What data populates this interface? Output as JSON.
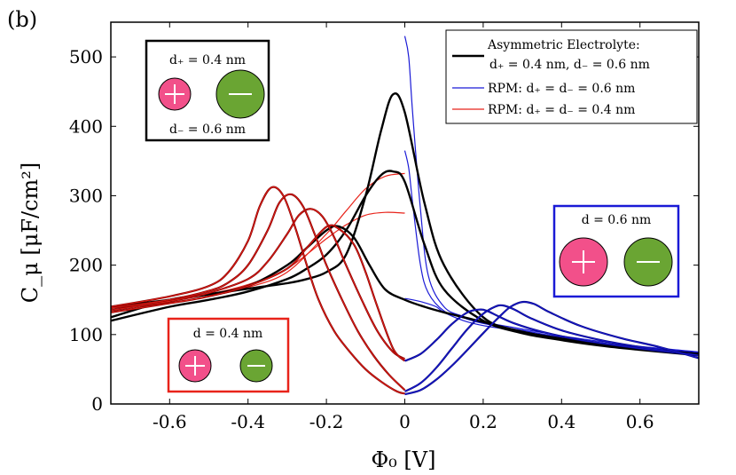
{
  "panel_label": "(b)",
  "colors": {
    "asymmetric": "#000000",
    "rpm_06": "#1a1ad6",
    "rpm_04": "#e8231a",
    "series_dark_red": "#8b0000",
    "series_dark_blue": "#0a0a8c",
    "cation": "#f2508a",
    "anion": "#6aa533",
    "box_black": "#000000",
    "box_blue": "#1a1ad6",
    "box_red": "#e8231a"
  },
  "insets": {
    "black_box": {
      "d_plus": "d₊ = 0.4 nm",
      "d_minus": "d₋ = 0.6 nm"
    },
    "blue_box": {
      "d": "d = 0.6 nm"
    },
    "red_box": {
      "d": "d = 0.4 nm"
    }
  },
  "chart_data": {
    "type": "line",
    "xlabel": "Φ₀ [V]",
    "ylabel": "C_μ [μF/cm²]",
    "xlim": [
      -0.75,
      0.75
    ],
    "ylim": [
      0,
      550
    ],
    "xticks": [
      -0.6,
      -0.4,
      -0.2,
      0,
      0.2,
      0.4,
      0.6
    ],
    "xtick_labels": [
      "-0.6",
      "-0.4",
      "-0.2",
      "0",
      "0.2",
      "0.4",
      "0.6"
    ],
    "yticks": [
      0,
      100,
      200,
      300,
      400,
      500
    ],
    "ytick_labels": [
      "0",
      "100",
      "200",
      "300",
      "400",
      "500"
    ],
    "grid": false,
    "legend_position": "top-right",
    "legend": [
      {
        "label_line1": "Asymmetric Electrolyte:",
        "label_line2": "d₊ = 0.4 nm, d₋ = 0.6 nm",
        "color": "#000000"
      },
      {
        "label_line1": "RPM: d₊ = d₋ = 0.6 nm",
        "label_line2": "",
        "color": "#1a1ad6"
      },
      {
        "label_line1": "RPM: d₊ = d₋ = 0.4 nm",
        "label_line2": "",
        "color": "#e8231a"
      }
    ],
    "series": [
      {
        "group": "asymmetric",
        "x": [
          -0.75,
          -0.6,
          -0.5,
          -0.4,
          -0.3,
          -0.25,
          -0.2,
          -0.15,
          -0.1,
          -0.06,
          -0.03,
          0,
          0.05,
          0.1,
          0.2,
          0.3,
          0.4,
          0.5,
          0.6,
          0.75
        ],
        "y": [
          125,
          150,
          158,
          166,
          174,
          180,
          190,
          215,
          300,
          395,
          446,
          420,
          290,
          200,
          125,
          104,
          94,
          86,
          80,
          72
        ]
      },
      {
        "group": "asymmetric",
        "x": [
          -0.75,
          -0.6,
          -0.5,
          -0.4,
          -0.3,
          -0.25,
          -0.2,
          -0.15,
          -0.1,
          -0.06,
          -0.03,
          0,
          0.05,
          0.1,
          0.2,
          0.3,
          0.4,
          0.5,
          0.6,
          0.75
        ],
        "y": [
          120,
          140,
          150,
          162,
          180,
          195,
          215,
          250,
          300,
          330,
          335,
          320,
          230,
          165,
          120,
          102,
          92,
          84,
          78,
          70
        ]
      },
      {
        "group": "asymmetric",
        "x": [
          -0.75,
          -0.6,
          -0.5,
          -0.4,
          -0.3,
          -0.25,
          -0.2,
          -0.17,
          -0.13,
          -0.09,
          -0.05,
          0,
          0.05,
          0.1,
          0.2,
          0.3,
          0.4,
          0.5,
          0.6,
          0.75
        ],
        "y": [
          140,
          150,
          158,
          170,
          200,
          225,
          250,
          256,
          240,
          200,
          165,
          150,
          140,
          132,
          118,
          104,
          94,
          86,
          80,
          72
        ]
      },
      {
        "group": "rpm04",
        "x": [
          -0.75,
          -0.6,
          -0.5,
          -0.45,
          -0.4,
          -0.37,
          -0.34,
          -0.31,
          -0.28,
          -0.25,
          -0.22,
          -0.18,
          -0.14,
          -0.1,
          -0.06,
          -0.02,
          0
        ],
        "y": [
          140,
          155,
          170,
          190,
          235,
          285,
          312,
          300,
          255,
          200,
          150,
          105,
          75,
          50,
          32,
          18,
          15
        ]
      },
      {
        "group": "rpm04",
        "x": [
          -0.75,
          -0.6,
          -0.5,
          -0.45,
          -0.4,
          -0.35,
          -0.32,
          -0.29,
          -0.26,
          -0.23,
          -0.2,
          -0.16,
          -0.12,
          -0.08,
          -0.04,
          0
        ],
        "y": [
          138,
          150,
          163,
          175,
          200,
          250,
          290,
          302,
          285,
          245,
          200,
          150,
          105,
          70,
          42,
          20
        ]
      },
      {
        "group": "rpm04",
        "x": [
          -0.75,
          -0.6,
          -0.5,
          -0.4,
          -0.35,
          -0.3,
          -0.27,
          -0.24,
          -0.21,
          -0.18,
          -0.15,
          -0.11,
          -0.07,
          -0.03,
          0
        ],
        "y": [
          135,
          148,
          160,
          180,
          205,
          245,
          272,
          281,
          270,
          240,
          200,
          150,
          105,
          75,
          65
        ]
      },
      {
        "group": "rpm04",
        "x": [
          -0.75,
          -0.6,
          -0.5,
          -0.4,
          -0.3,
          -0.25,
          -0.2,
          -0.17,
          -0.13,
          -0.1,
          -0.07,
          -0.03,
          0
        ],
        "y": [
          132,
          145,
          155,
          170,
          195,
          225,
          255,
          253,
          230,
          190,
          140,
          80,
          62
        ]
      },
      {
        "group": "rpm04_thin",
        "x": [
          -0.75,
          -0.6,
          -0.5,
          -0.4,
          -0.3,
          -0.2,
          -0.15,
          -0.1,
          -0.05,
          0
        ],
        "y": [
          140,
          148,
          158,
          172,
          195,
          238,
          258,
          272,
          276,
          275
        ]
      },
      {
        "group": "rpm04_thin",
        "x": [
          -0.75,
          -0.6,
          -0.5,
          -0.4,
          -0.3,
          -0.2,
          -0.15,
          -0.1,
          -0.05,
          0
        ],
        "y": [
          138,
          146,
          155,
          168,
          190,
          245,
          278,
          310,
          328,
          332
        ]
      },
      {
        "group": "rpm06_thin",
        "x": [
          0,
          0.01,
          0.02,
          0.04,
          0.06,
          0.1,
          0.15,
          0.2,
          0.3,
          0.4,
          0.5,
          0.6,
          0.75
        ],
        "y": [
          530,
          500,
          420,
          280,
          185,
          140,
          126,
          118,
          108,
          98,
          90,
          83,
          75
        ]
      },
      {
        "group": "rpm06_thin",
        "x": [
          0,
          0.01,
          0.02,
          0.04,
          0.06,
          0.1,
          0.15,
          0.2,
          0.3,
          0.4,
          0.5,
          0.6,
          0.75
        ],
        "y": [
          365,
          340,
          290,
          200,
          160,
          134,
          124,
          116,
          106,
          96,
          88,
          82,
          74
        ]
      },
      {
        "group": "rpm06_thin",
        "x": [
          0,
          0.02,
          0.05,
          0.08,
          0.1,
          0.15,
          0.2,
          0.3,
          0.4,
          0.5,
          0.6,
          0.75
        ],
        "y": [
          152,
          150,
          146,
          140,
          132,
          120,
          113,
          104,
          95,
          88,
          82,
          74
        ]
      },
      {
        "group": "rpm06",
        "x": [
          0,
          0.04,
          0.08,
          0.12,
          0.16,
          0.19,
          0.21,
          0.24,
          0.28,
          0.35,
          0.45,
          0.6,
          0.75
        ],
        "y": [
          62,
          72,
          92,
          115,
          132,
          136,
          134,
          126,
          116,
          104,
          92,
          80,
          70
        ]
      },
      {
        "group": "rpm06",
        "x": [
          0,
          0.04,
          0.08,
          0.12,
          0.16,
          0.2,
          0.23,
          0.25,
          0.28,
          0.32,
          0.4,
          0.5,
          0.6,
          0.75
        ],
        "y": [
          18,
          30,
          52,
          80,
          108,
          130,
          140,
          142,
          136,
          124,
          106,
          92,
          82,
          70
        ]
      },
      {
        "group": "rpm06",
        "x": [
          0,
          0.04,
          0.08,
          0.12,
          0.16,
          0.2,
          0.24,
          0.27,
          0.3,
          0.33,
          0.37,
          0.45,
          0.55,
          0.65,
          0.75
        ],
        "y": [
          14,
          20,
          35,
          55,
          78,
          102,
          125,
          140,
          147,
          144,
          132,
          112,
          95,
          82,
          66
        ]
      }
    ]
  }
}
